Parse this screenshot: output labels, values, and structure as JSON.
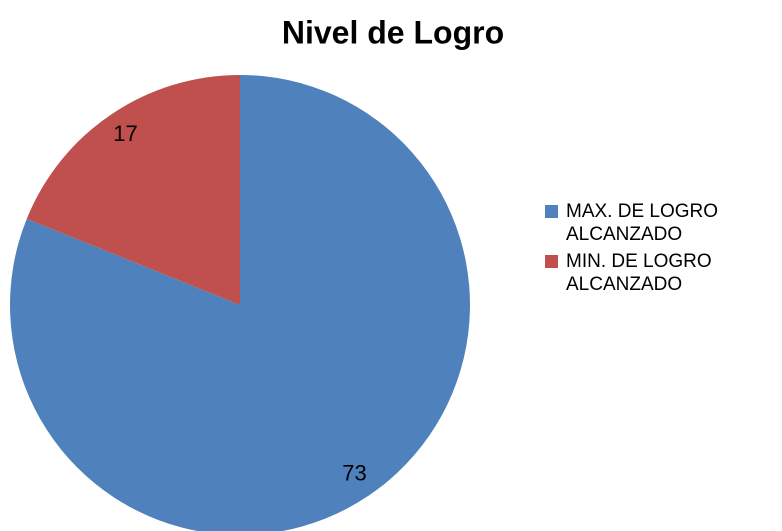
{
  "chart_data": {
    "type": "pie",
    "title": "Nivel de Logro",
    "categories": [
      "MAX. DE LOGRO ALCANZADO",
      "MIN. DE LOGRO ALCANZADO"
    ],
    "values": [
      73,
      17
    ],
    "colors": [
      "#4f81bd",
      "#c0504d"
    ],
    "legend": "right"
  }
}
